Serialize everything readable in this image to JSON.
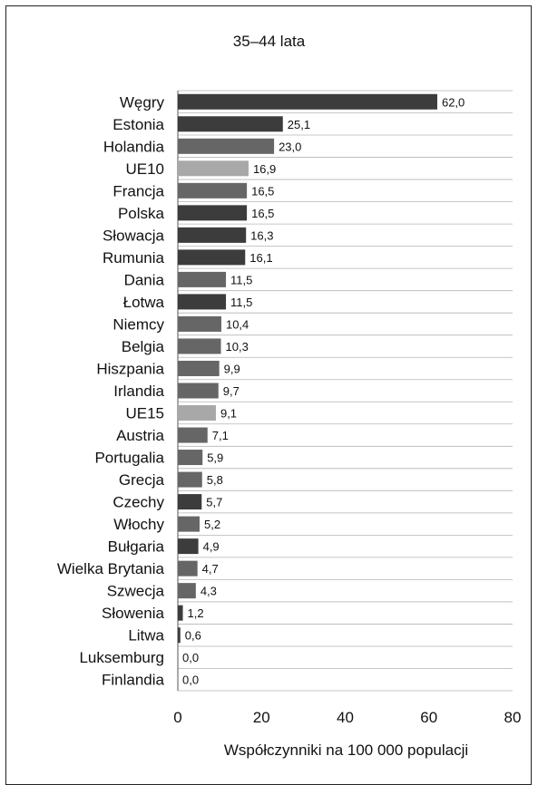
{
  "chart_data": {
    "type": "bar",
    "orientation": "horizontal",
    "title": "35–44 lata",
    "xlabel": "Współczynniki na 100 000 populacji",
    "ylabel": "",
    "xlim": [
      0,
      80
    ],
    "x_ticks": [
      0,
      20,
      40,
      60,
      80
    ],
    "grid": true,
    "legend": "none",
    "categories": [
      "Węgry",
      "Estonia",
      "Holandia",
      "UE10",
      "Francja",
      "Polska",
      "Słowacja",
      "Rumunia",
      "Dania",
      "Łotwa",
      "Niemcy",
      "Belgia",
      "Hiszpania",
      "Irlandia",
      "UE15",
      "Austria",
      "Portugalia",
      "Grecja",
      "Czechy",
      "Włochy",
      "Bułgaria",
      "Wielka Brytania",
      "Szwecja",
      "Słowenia",
      "Litwa",
      "Luksemburg",
      "Finlandia"
    ],
    "values": [
      62.0,
      25.1,
      23.0,
      16.9,
      16.5,
      16.5,
      16.3,
      16.1,
      11.5,
      11.5,
      10.4,
      10.3,
      9.9,
      9.7,
      9.1,
      7.1,
      5.9,
      5.8,
      5.7,
      5.2,
      4.9,
      4.7,
      4.3,
      1.2,
      0.6,
      0.0,
      0.0
    ],
    "value_labels": [
      "62,0",
      "25,1",
      "23,0",
      "16,9",
      "16,5",
      "16,5",
      "16,3",
      "16,1",
      "11,5",
      "11,5",
      "10,4",
      "10,3",
      "9,9",
      "9,7",
      "9,1",
      "7,1",
      "5,9",
      "5,8",
      "5,7",
      "5,2",
      "4,9",
      "4,7",
      "4,3",
      "1,2",
      "0,6",
      "0,0",
      "0,0"
    ],
    "bar_colors": [
      "#3c3c3c",
      "#3c3c3c",
      "#666666",
      "#a8a8a8",
      "#666666",
      "#3c3c3c",
      "#3c3c3c",
      "#3c3c3c",
      "#666666",
      "#3c3c3c",
      "#666666",
      "#666666",
      "#666666",
      "#666666",
      "#a8a8a8",
      "#666666",
      "#666666",
      "#666666",
      "#3c3c3c",
      "#666666",
      "#3c3c3c",
      "#666666",
      "#666666",
      "#3c3c3c",
      "#3c3c3c",
      "#666666",
      "#666666"
    ]
  }
}
